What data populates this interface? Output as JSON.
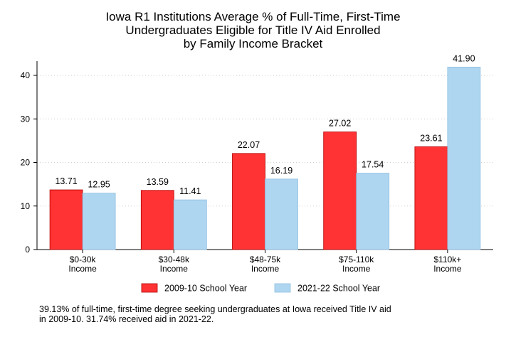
{
  "chart_data": {
    "type": "bar",
    "title_lines": [
      "Iowa R1 Institutions Average % of Full-Time, First-Time",
      "Undergraduates Eligible for Title IV Aid Enrolled",
      "by Family Income Bracket"
    ],
    "categories": [
      [
        "$0-30k",
        "Income"
      ],
      [
        "$30-48k",
        "Income"
      ],
      [
        "$48-75k",
        "Income"
      ],
      [
        "$75-110k",
        "Income"
      ],
      [
        "$110k+",
        "Income"
      ]
    ],
    "series": [
      {
        "name": "2009-10 School Year",
        "color": "#ff3333",
        "values": [
          13.71,
          13.59,
          22.07,
          27.02,
          23.61
        ],
        "labels": [
          "13.71",
          "13.59",
          "22.07",
          "27.02",
          "23.61"
        ]
      },
      {
        "name": "2021-22 School Year",
        "color": "#afd6f0",
        "values": [
          12.95,
          11.41,
          16.19,
          17.54,
          41.9
        ],
        "labels": [
          "12.95",
          "11.41",
          "16.19",
          "17.54",
          "41.90"
        ]
      }
    ],
    "xlabel": "",
    "ylabel": "",
    "ylim": [
      0,
      42
    ],
    "yticks": [
      0,
      10,
      20,
      30,
      40
    ],
    "grid": "horizontal dotted",
    "legend": "bottom"
  },
  "footnote": [
    "39.13% of full-time, first-time degree seeking undergraduates at Iowa received Title IV aid",
    "in 2009-10. 31.74% received aid in 2021-22."
  ]
}
